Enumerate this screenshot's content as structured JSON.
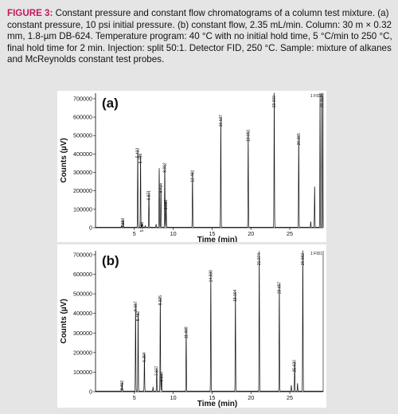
{
  "caption": {
    "label": "FIGURE 3:",
    "text": "Constant pressure and constant flow chromatograms of a column test mixture. (a) constant pressure, 10 psi initial pressure. (b) constant flow, 2.35 mL/min. Column: 30 m × 0.32 mm, 1.8-µm DB-624. Temperature program: 40 °C with no initial hold time, 5 °C/min to 250 °C, final hold time for 2 min. Injection: split 50:1. Detector FID, 250 °C. Sample: mixture of alkanes and McReynolds constant test probes."
  },
  "colors": {
    "background": "#e5e5e5",
    "caption_label": "#c2185b",
    "trace": "#111111"
  },
  "chart_data": [
    {
      "type": "line",
      "panel_label": "(a)",
      "channel_label": "1 FID1",
      "xlabel": "Time (min)",
      "ylabel": "Counts (µV)",
      "xlim": [
        0,
        29.3
      ],
      "ylim": [
        0,
        730000
      ],
      "xticks": [
        5,
        10,
        15,
        20,
        25
      ],
      "yticks": [
        0,
        100000,
        200000,
        300000,
        400000,
        500000,
        600000,
        700000
      ],
      "ytick_labels": [
        "0",
        "100000",
        "200000",
        "300000",
        "400000",
        "500000",
        "600000",
        "700000"
      ],
      "peaks": [
        {
          "x": 3.35,
          "y": 8000
        },
        {
          "x": 3.55,
          "y": 40000,
          "label": "3.550"
        },
        {
          "x": 5.433,
          "y": 420000,
          "label": "5.433"
        },
        {
          "x": 5.795,
          "y": 390000,
          "label": "5.795"
        },
        {
          "x": 6.0,
          "y": 18000,
          "label": "5.983"
        },
        {
          "x": 6.4,
          "y": 8000
        },
        {
          "x": 6.871,
          "y": 190000,
          "label": "6.871"
        },
        {
          "x": 7.8,
          "y": 15000
        },
        {
          "x": 8.2,
          "y": 320000
        },
        {
          "x": 8.416,
          "y": 230000,
          "label": "8.416"
        },
        {
          "x": 8.912,
          "y": 340000,
          "label": "8.912"
        },
        {
          "x": 9.088,
          "y": 140000,
          "label": "9.088"
        },
        {
          "x": 12.481,
          "y": 300000,
          "label": "12.481"
        },
        {
          "x": 16.127,
          "y": 600000,
          "label": "16.127"
        },
        {
          "x": 19.651,
          "y": 520000,
          "label": "19.651"
        },
        {
          "x": 23.0,
          "y": 730000,
          "label": "23.000"
        },
        {
          "x": 26.155,
          "y": 500000,
          "label": "26.155"
        },
        {
          "x": 27.7,
          "y": 30000
        },
        {
          "x": 28.2,
          "y": 220000
        },
        {
          "x": 28.9,
          "y": 730000
        },
        {
          "x": 29.15,
          "y": 730000,
          "label": "29.152"
        }
      ]
    },
    {
      "type": "line",
      "panel_label": "(b)",
      "channel_label": "1 FID1",
      "xlabel": "Time (min)",
      "ylabel": "Counts (µV)",
      "xlim": [
        0,
        29.3
      ],
      "ylim": [
        0,
        720000
      ],
      "xticks": [
        5,
        10,
        15,
        20,
        25
      ],
      "yticks": [
        0,
        100000,
        200000,
        300000,
        400000,
        500000,
        600000,
        700000
      ],
      "ytick_labels": [
        "0",
        "100000",
        "200000",
        "300000",
        "400000",
        "500000",
        "600000",
        "700000"
      ],
      "peaks": [
        {
          "x": 3.413,
          "y": 45000,
          "label": "3.413"
        },
        {
          "x": 5.157,
          "y": 450000,
          "label": "5.157"
        },
        {
          "x": 5.482,
          "y": 400000,
          "label": "5.482"
        },
        {
          "x": 6.294,
          "y": 190000,
          "label": "6.294"
        },
        {
          "x": 7.4,
          "y": 20000
        },
        {
          "x": 7.877,
          "y": 120000,
          "label": "7.877"
        },
        {
          "x": 8.335,
          "y": 480000,
          "label": "8.335"
        },
        {
          "x": 8.5,
          "y": 90000,
          "label": "8.500"
        },
        {
          "x": 11.669,
          "y": 320000,
          "label": "11.669"
        },
        {
          "x": 14.838,
          "y": 610000,
          "label": "14.838"
        },
        {
          "x": 18.004,
          "y": 510000,
          "label": "18.004"
        },
        {
          "x": 21.074,
          "y": 720000,
          "label": "21.074"
        },
        {
          "x": 23.657,
          "y": 550000,
          "label": "23.657"
        },
        {
          "x": 25.2,
          "y": 30000
        },
        {
          "x": 25.63,
          "y": 150000,
          "label": "25.630"
        },
        {
          "x": 26.0,
          "y": 40000
        },
        {
          "x": 26.682,
          "y": 720000,
          "label": "26.682"
        }
      ]
    }
  ]
}
